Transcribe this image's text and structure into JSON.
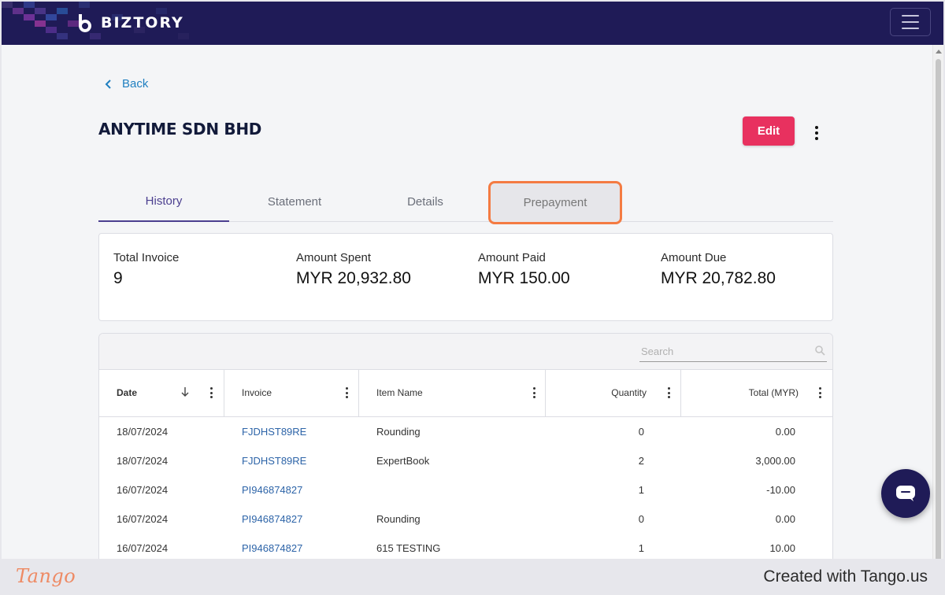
{
  "app": {
    "brand": "BIZTORY"
  },
  "nav": {
    "back_label": "Back"
  },
  "customer": {
    "name": "ANYTIME SDN BHD",
    "edit_label": "Edit"
  },
  "tabs": [
    {
      "label": "History",
      "active": true
    },
    {
      "label": "Statement",
      "active": false
    },
    {
      "label": "Details",
      "active": false
    },
    {
      "label": "Prepayment",
      "active": false,
      "highlighted": true
    }
  ],
  "summary": [
    {
      "label": "Total Invoice",
      "value": "9"
    },
    {
      "label": "Amount Spent",
      "value": "MYR 20,932.80"
    },
    {
      "label": "Amount Paid",
      "value": "MYR 150.00"
    },
    {
      "label": "Amount Due",
      "value": "MYR 20,782.80"
    }
  ],
  "table": {
    "search_placeholder": "Search",
    "columns": [
      "Date",
      "Invoice",
      "Item Name",
      "Quantity",
      "Total (MYR)"
    ],
    "sort": {
      "column": "Date",
      "direction": "descending"
    },
    "rows": [
      {
        "date": "18/07/2024",
        "invoice": "FJDHST89RE",
        "item": "Rounding",
        "qty": "0",
        "total": "0.00"
      },
      {
        "date": "18/07/2024",
        "invoice": "FJDHST89RE",
        "item": "ExpertBook",
        "qty": "2",
        "total": "3,000.00"
      },
      {
        "date": "16/07/2024",
        "invoice": "PI946874827",
        "item": "",
        "qty": "1",
        "total": "-10.00"
      },
      {
        "date": "16/07/2024",
        "invoice": "PI946874827",
        "item": "Rounding",
        "qty": "0",
        "total": "0.00"
      },
      {
        "date": "16/07/2024",
        "invoice": "PI946874827",
        "item": "615 TESTING",
        "qty": "1",
        "total": "10.00"
      }
    ]
  },
  "footer": {
    "tango_logo": "Tango",
    "created_text": "Created with Tango.us"
  },
  "colors": {
    "navbar": "#1f1b57",
    "edit_button": "#e8315f",
    "active_tab": "#4b3f8f",
    "link": "#2d64a8",
    "highlight_outline": "#f47b42"
  }
}
